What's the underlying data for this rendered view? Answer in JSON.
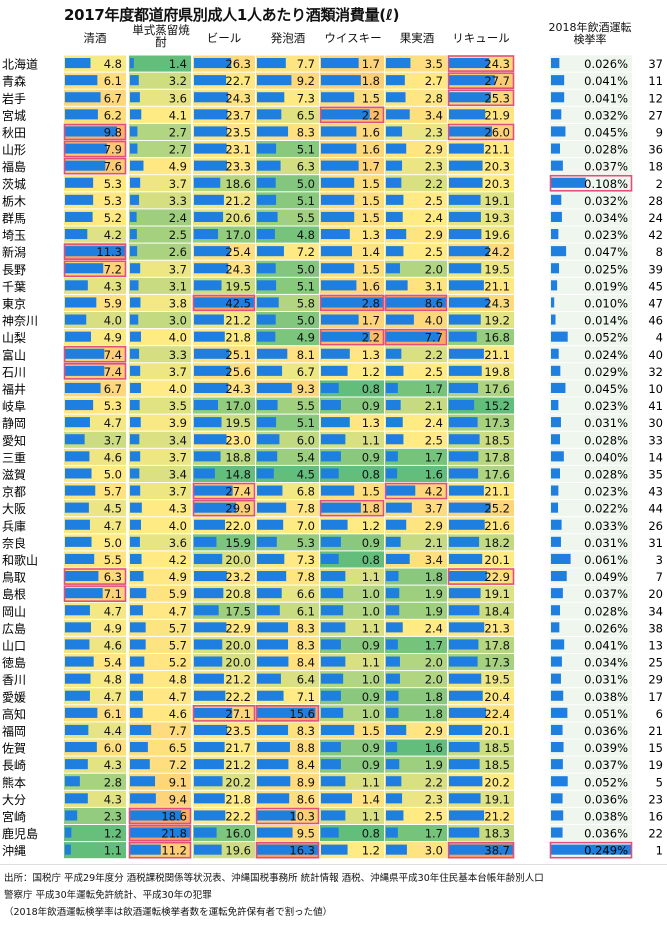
{
  "chart_data": {
    "type": "table",
    "title": "2017年度都道府県別成人1人あたり酒類消費量(ℓ)",
    "columns": [
      "清酒",
      "単式蒸留焼酎",
      "ビール",
      "発泡酒",
      "ウイスキー",
      "果実酒",
      "リキュール"
    ],
    "rate_column": "2018年飲酒運転検挙率",
    "prefectures": [
      "北海道",
      "青森",
      "岩手",
      "宮城",
      "秋田",
      "山形",
      "福島",
      "茨城",
      "栃木",
      "群馬",
      "埼玉",
      "新潟",
      "長野",
      "千葉",
      "東京",
      "神奈川",
      "山梨",
      "富山",
      "石川",
      "福井",
      "岐阜",
      "静岡",
      "愛知",
      "三重",
      "滋賀",
      "京都",
      "大阪",
      "兵庫",
      "奈良",
      "和歌山",
      "鳥取",
      "島根",
      "岡山",
      "広島",
      "山口",
      "徳島",
      "香川",
      "愛媛",
      "高知",
      "福岡",
      "佐賀",
      "長崎",
      "熊本",
      "大分",
      "宮崎",
      "鹿児島",
      "沖縄"
    ],
    "values": [
      [
        4.8,
        1.4,
        26.3,
        7.7,
        1.7,
        3.5,
        24.3
      ],
      [
        6.1,
        3.2,
        22.7,
        9.2,
        1.8,
        2.7,
        27.7
      ],
      [
        6.7,
        3.6,
        24.3,
        7.3,
        1.5,
        2.8,
        25.3
      ],
      [
        6.2,
        4.1,
        23.7,
        6.5,
        2.2,
        3.4,
        21.9
      ],
      [
        9.8,
        2.7,
        23.5,
        8.3,
        1.6,
        2.3,
        26.0
      ],
      [
        7.9,
        2.7,
        23.1,
        5.1,
        1.6,
        2.9,
        21.1
      ],
      [
        7.6,
        4.9,
        23.3,
        6.3,
        1.7,
        2.3,
        20.3
      ],
      [
        5.3,
        3.7,
        18.6,
        5.0,
        1.5,
        2.2,
        20.3
      ],
      [
        5.3,
        3.3,
        21.2,
        5.1,
        1.5,
        2.5,
        19.1
      ],
      [
        5.2,
        2.4,
        20.6,
        5.5,
        1.5,
        2.4,
        19.3
      ],
      [
        4.2,
        2.5,
        17.0,
        4.8,
        1.3,
        2.9,
        19.6
      ],
      [
        11.3,
        2.6,
        25.4,
        7.2,
        1.4,
        2.5,
        24.2
      ],
      [
        7.2,
        3.7,
        24.3,
        5.0,
        1.5,
        2.0,
        19.5
      ],
      [
        4.3,
        3.1,
        19.5,
        5.1,
        1.6,
        3.1,
        21.1
      ],
      [
        5.9,
        3.8,
        42.5,
        5.8,
        2.8,
        8.6,
        24.3
      ],
      [
        4.0,
        3.0,
        21.2,
        5.0,
        1.7,
        4.0,
        19.2
      ],
      [
        4.9,
        4.0,
        21.8,
        4.9,
        2.2,
        7.7,
        16.8
      ],
      [
        7.4,
        3.3,
        25.1,
        8.1,
        1.3,
        2.2,
        21.1
      ],
      [
        7.4,
        3.7,
        25.6,
        6.7,
        1.2,
        2.5,
        19.8
      ],
      [
        6.7,
        4.0,
        24.3,
        9.3,
        0.8,
        1.7,
        17.6
      ],
      [
        5.3,
        3.5,
        17.0,
        5.5,
        0.9,
        2.1,
        15.2
      ],
      [
        4.7,
        3.9,
        19.5,
        5.1,
        1.3,
        2.4,
        17.3
      ],
      [
        3.7,
        3.4,
        23.0,
        6.0,
        1.1,
        2.5,
        18.5
      ],
      [
        4.6,
        3.7,
        18.8,
        5.4,
        0.9,
        1.7,
        17.8
      ],
      [
        5.0,
        3.4,
        14.8,
        4.5,
        0.8,
        1.6,
        17.6
      ],
      [
        5.7,
        3.7,
        27.4,
        6.8,
        1.5,
        4.2,
        21.1
      ],
      [
        4.5,
        4.3,
        29.9,
        7.8,
        1.8,
        3.7,
        25.2
      ],
      [
        4.7,
        4.0,
        22.0,
        7.0,
        1.2,
        2.9,
        21.6
      ],
      [
        5.0,
        3.6,
        15.9,
        5.3,
        0.9,
        2.1,
        18.2
      ],
      [
        5.5,
        4.2,
        20.0,
        7.3,
        0.8,
        3.4,
        20.1
      ],
      [
        6.3,
        4.9,
        23.2,
        7.8,
        1.1,
        1.8,
        22.9
      ],
      [
        7.1,
        5.9,
        20.8,
        6.6,
        1.0,
        1.9,
        19.1
      ],
      [
        4.7,
        4.7,
        17.5,
        6.1,
        1.0,
        1.9,
        18.4
      ],
      [
        4.9,
        5.7,
        22.9,
        8.3,
        1.1,
        2.4,
        21.3
      ],
      [
        4.6,
        5.7,
        20.0,
        8.3,
        0.9,
        1.7,
        17.8
      ],
      [
        5.4,
        5.2,
        20.0,
        8.4,
        1.1,
        2.0,
        17.3
      ],
      [
        4.8,
        4.8,
        21.2,
        6.4,
        1.0,
        2.0,
        19.5
      ],
      [
        4.7,
        4.7,
        22.2,
        7.1,
        0.9,
        1.8,
        20.4
      ],
      [
        6.1,
        4.6,
        27.1,
        15.6,
        1.0,
        1.8,
        22.4
      ],
      [
        4.4,
        7.7,
        23.5,
        8.3,
        1.5,
        2.9,
        20.1
      ],
      [
        6.0,
        6.5,
        21.7,
        8.8,
        0.9,
        1.6,
        18.5
      ],
      [
        4.3,
        7.2,
        21.2,
        8.4,
        0.9,
        1.9,
        18.5
      ],
      [
        2.8,
        9.1,
        20.2,
        8.9,
        1.1,
        2.2,
        20.2
      ],
      [
        4.3,
        9.4,
        21.8,
        8.6,
        1.4,
        2.3,
        19.1
      ],
      [
        2.3,
        18.6,
        22.2,
        10.3,
        1.1,
        2.5,
        21.2
      ],
      [
        1.2,
        21.8,
        16.0,
        9.5,
        0.8,
        1.7,
        18.3
      ],
      [
        1.1,
        11.2,
        19.6,
        16.3,
        1.2,
        3.0,
        38.7
      ]
    ],
    "rates": [
      "0.026%",
      "0.041%",
      "0.041%",
      "0.032%",
      "0.045%",
      "0.028%",
      "0.037%",
      "0.108%",
      "0.032%",
      "0.034%",
      "0.023%",
      "0.047%",
      "0.025%",
      "0.019%",
      "0.010%",
      "0.014%",
      "0.052%",
      "0.024%",
      "0.029%",
      "0.045%",
      "0.023%",
      "0.031%",
      "0.028%",
      "0.040%",
      "0.028%",
      "0.023%",
      "0.022%",
      "0.033%",
      "0.031%",
      "0.061%",
      "0.049%",
      "0.037%",
      "0.028%",
      "0.026%",
      "0.041%",
      "0.034%",
      "0.031%",
      "0.038%",
      "0.051%",
      "0.036%",
      "0.039%",
      "0.037%",
      "0.052%",
      "0.036%",
      "0.038%",
      "0.036%",
      "0.249%"
    ],
    "rate_values": [
      0.026,
      0.041,
      0.041,
      0.032,
      0.045,
      0.028,
      0.037,
      0.108,
      0.032,
      0.034,
      0.023,
      0.047,
      0.025,
      0.019,
      0.01,
      0.014,
      0.052,
      0.024,
      0.029,
      0.045,
      0.023,
      0.031,
      0.028,
      0.04,
      0.028,
      0.023,
      0.022,
      0.033,
      0.031,
      0.061,
      0.049,
      0.037,
      0.028,
      0.026,
      0.041,
      0.034,
      0.031,
      0.038,
      0.051,
      0.036,
      0.039,
      0.037,
      0.052,
      0.036,
      0.038,
      0.036,
      0.249
    ],
    "ranks": [
      37,
      11,
      12,
      27,
      9,
      36,
      18,
      2,
      28,
      24,
      42,
      8,
      39,
      45,
      47,
      46,
      4,
      40,
      32,
      10,
      41,
      30,
      33,
      14,
      35,
      43,
      44,
      26,
      31,
      3,
      7,
      20,
      34,
      38,
      13,
      25,
      29,
      17,
      6,
      21,
      15,
      19,
      5,
      23,
      16,
      22,
      1
    ],
    "highlights": [
      [
        4,
        0
      ],
      [
        5,
        0
      ],
      [
        6,
        0
      ],
      [
        11,
        0
      ],
      [
        12,
        0
      ],
      [
        17,
        0
      ],
      [
        18,
        0
      ],
      [
        30,
        0
      ],
      [
        31,
        0
      ],
      [
        44,
        1
      ],
      [
        45,
        1
      ],
      [
        46,
        1
      ],
      [
        14,
        2
      ],
      [
        25,
        2
      ],
      [
        26,
        2
      ],
      [
        38,
        2
      ],
      [
        38,
        3
      ],
      [
        44,
        3
      ],
      [
        46,
        3
      ],
      [
        3,
        4
      ],
      [
        14,
        4
      ],
      [
        16,
        4
      ],
      [
        26,
        4
      ],
      [
        14,
        5
      ],
      [
        16,
        5
      ],
      [
        25,
        5
      ],
      [
        0,
        6
      ],
      [
        1,
        6
      ],
      [
        2,
        6
      ],
      [
        4,
        6
      ],
      [
        30,
        6
      ],
      [
        46,
        6
      ],
      [
        7,
        7
      ],
      [
        46,
        7
      ]
    ]
  },
  "colors": {
    "bar": "#1f7fe0",
    "highlight_border": "#e0507a",
    "heat_low": "#63be7b",
    "heat_mid": "#ffeb84",
    "heat_high": "#f8a060"
  },
  "source": {
    "line1": "出所：国税庁 平成29年度分 酒税課税関係等状況表、沖縄国税事務所 統計情報 酒税、沖縄県平成30年住民基本台帳年齢別人口",
    "line2": "警察庁 平成30年運転免許統計、平成30年の犯罪",
    "line3": "（2018年飲酒運転検挙率は飲酒運転検挙者数を運転免許保有者で割った値）"
  }
}
